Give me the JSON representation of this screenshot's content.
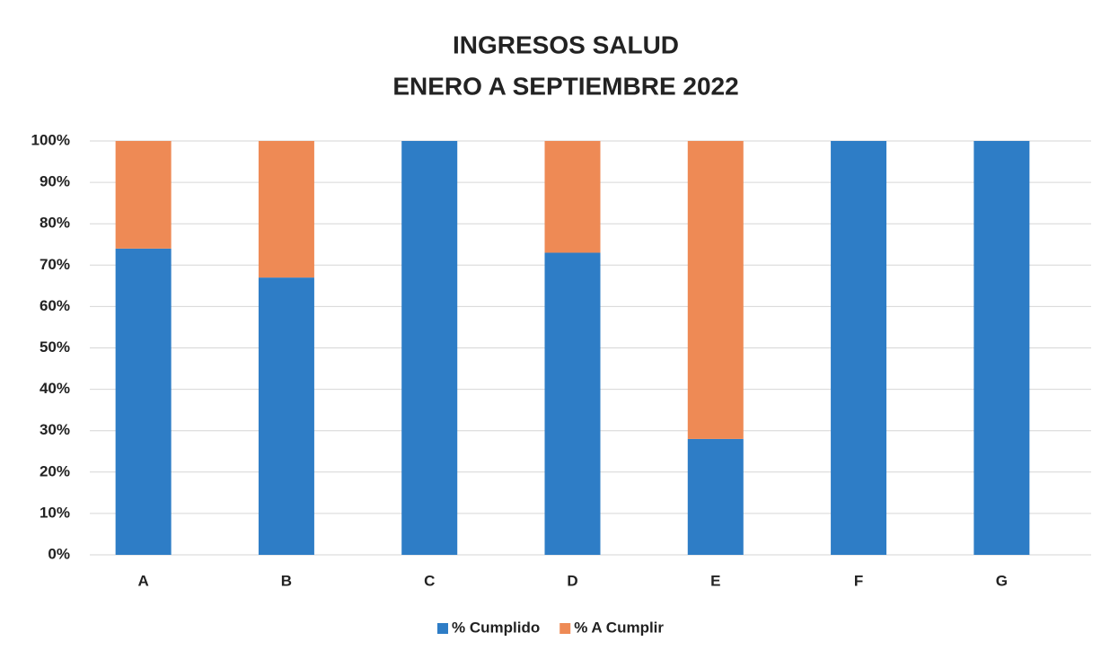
{
  "chart_data": {
    "type": "stacked_bar",
    "title": "INGRESOS SALUD",
    "subtitle": "ENERO A SEPTIEMBRE 2022",
    "categories": [
      "A",
      "B",
      "C",
      "D",
      "E",
      "F",
      "G"
    ],
    "series": [
      {
        "name": "% Cumplido",
        "color": "#2e7dc6",
        "values": [
          74,
          67,
          100,
          73,
          28,
          100,
          100
        ]
      },
      {
        "name": "% A Cumplir",
        "color": "#ee8a55",
        "values": [
          26,
          33,
          0,
          27,
          72,
          0,
          0
        ]
      }
    ],
    "ylim": [
      0,
      100
    ],
    "yticks": [
      {
        "value": 0,
        "label": "0%"
      },
      {
        "value": 10,
        "label": "10%"
      },
      {
        "value": 20,
        "label": "20%"
      },
      {
        "value": 30,
        "label": "30%"
      },
      {
        "value": 40,
        "label": "40%"
      },
      {
        "value": 50,
        "label": "50%"
      },
      {
        "value": 60,
        "label": "60%"
      },
      {
        "value": 70,
        "label": "70%"
      },
      {
        "value": 80,
        "label": "80%"
      },
      {
        "value": 90,
        "label": "90%"
      },
      {
        "value": 100,
        "label": "100%"
      }
    ],
    "grid": true,
    "legend": "bottom"
  }
}
